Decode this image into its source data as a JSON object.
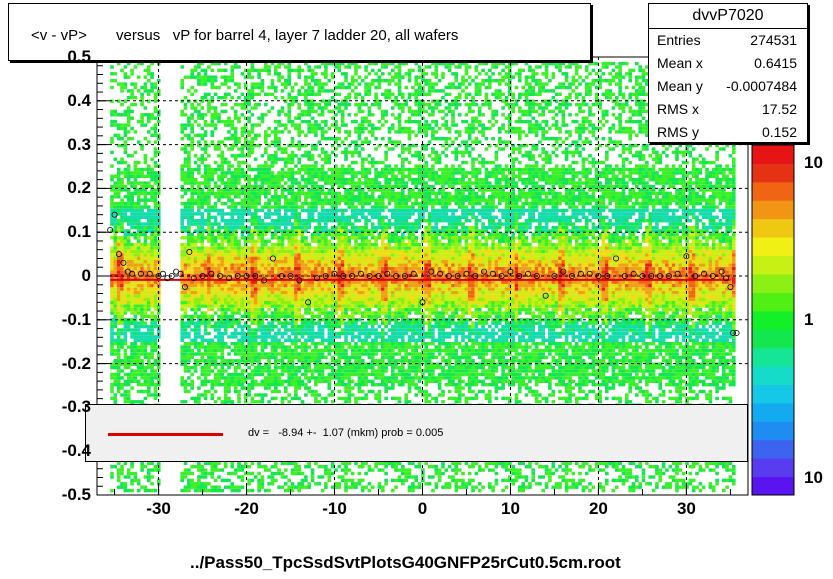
{
  "title": "<v - vP>       versus   vP for barrel 4, layer 7 ladder 20, all wafers",
  "stats": {
    "name": "dvvP7020",
    "rows": [
      {
        "k": "Entries",
        "v": "274531"
      },
      {
        "k": "Mean x",
        "v": "0.6415"
      },
      {
        "k": "Mean y",
        "v": "-0.0007484"
      },
      {
        "k": "RMS x",
        "v": "17.52"
      },
      {
        "k": "RMS y",
        "v": "0.152"
      }
    ]
  },
  "fit": {
    "text": "dv =   -8.94 +-  1.07 (mkm) prob = 0.005",
    "color": "#e00000"
  },
  "xlabel": "../Pass50_TpcSsdSvtPlotsG40GNFP25rCut0.5cm.root",
  "chart_data": {
    "type": "heatmap",
    "xlim": [
      -37,
      37
    ],
    "ylim": [
      -0.5,
      0.5
    ],
    "x_ticks": [
      -30,
      -20,
      -10,
      0,
      10,
      20,
      30
    ],
    "y_ticks": [
      -0.5,
      -0.4,
      -0.3,
      -0.2,
      -0.1,
      0,
      0.1,
      0.2,
      0.3,
      0.4,
      0.5
    ],
    "y_tick_labels": [
      "-0.5",
      "-0.4",
      "-0.3",
      "-0.2",
      "-0.1",
      "0",
      "0.1",
      "0.2",
      "0.3",
      "0.4",
      "0.5"
    ],
    "z_scale": "log",
    "z_tick_labels": [
      "10",
      "1",
      "10"
    ],
    "grid": true,
    "profile": {
      "x": [
        -35.5,
        -35,
        -34.5,
        -34,
        -33.5,
        -33,
        -32,
        -31,
        -30,
        -29.5,
        -29,
        -28.5,
        -28,
        -27.5,
        -27,
        -26.5,
        -26,
        -25,
        -24,
        -23,
        -22,
        -21,
        -20,
        -19,
        -18,
        -17,
        -16,
        -15,
        -14,
        -13,
        -12,
        -11,
        -10,
        -9,
        -8,
        -7,
        -6,
        -5,
        -4,
        -3,
        -2,
        -1,
        0,
        1,
        2,
        3,
        4,
        5,
        6,
        7,
        8,
        9,
        10,
        11,
        12,
        13,
        14,
        15,
        16,
        17,
        18,
        19,
        20,
        21,
        22,
        23,
        24,
        25,
        26,
        27,
        28,
        29,
        30,
        31,
        32,
        33,
        34,
        34.5,
        35
      ],
      "y": [
        0.105,
        0.14,
        0.05,
        0.03,
        0.01,
        0.005,
        0.005,
        0.005,
        0.0,
        0.005,
        -0.005,
        0.0,
        0.01,
        0.005,
        -0.025,
        0.055,
        -0.005,
        0.0,
        0.005,
        0.0,
        -0.005,
        0.0,
        0.0,
        0.0,
        -0.01,
        0.04,
        0.0,
        0.0,
        -0.01,
        -0.06,
        -0.005,
        0.0,
        0.005,
        0.0,
        0.0,
        0.005,
        0.0,
        0.0,
        0.005,
        0.0,
        0.0,
        0.005,
        -0.06,
        0.01,
        0.005,
        0.0,
        0.0,
        0.005,
        0.0,
        0.01,
        0.005,
        0.0,
        0.01,
        0.0,
        0.005,
        0.0,
        -0.045,
        0.0,
        0.01,
        0.0,
        0.005,
        0.005,
        0.0,
        0.0,
        0.04,
        0.0,
        0.005,
        0.0,
        0.0,
        0.0,
        0.0,
        0.005,
        0.045,
        0.0,
        0.005,
        0.0,
        0.01,
        -0.005,
        -0.025
      ],
      "tail_x": [
        35.3,
        35.7
      ],
      "tail_y": [
        -0.13,
        -0.13
      ]
    },
    "fit_y": -0.00894
  }
}
